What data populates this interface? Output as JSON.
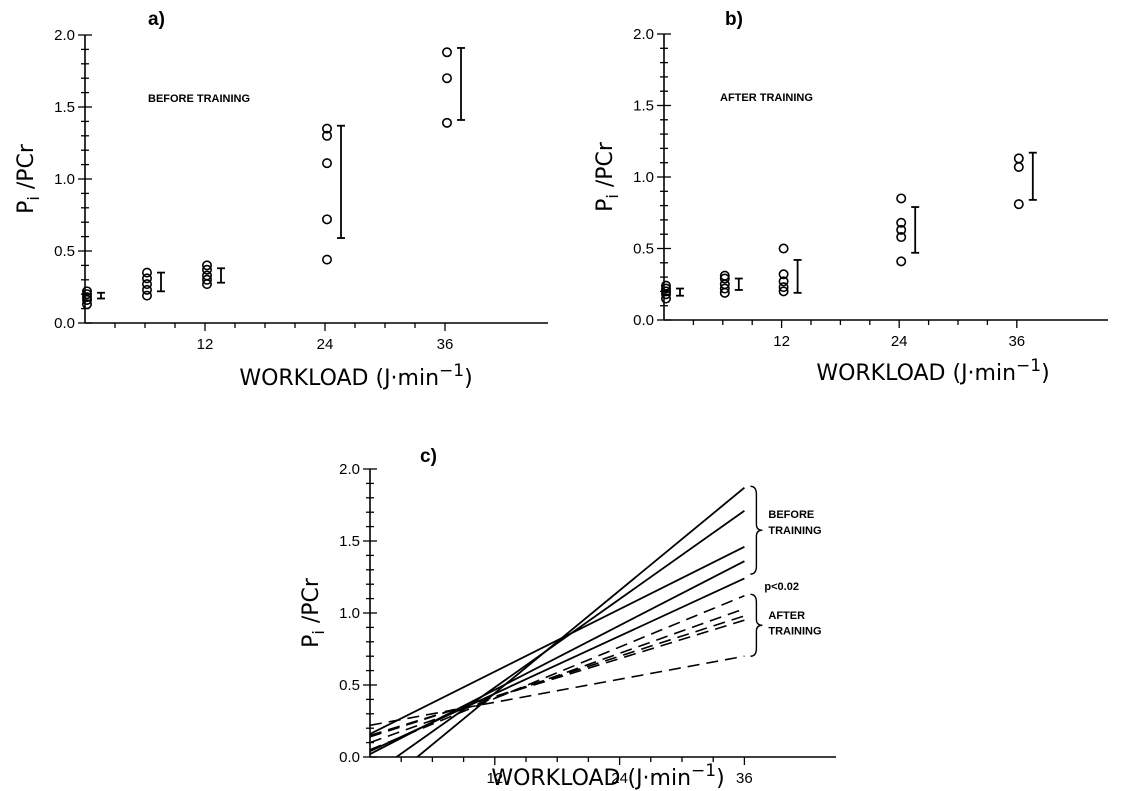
{
  "chart_data": [
    {
      "type": "scatter",
      "panel_label": "a)",
      "annotation": "BEFORE TRAINING",
      "xlabel": "WORKLOAD",
      "xlabel_units": "(J·min",
      "xlabel_exp": "−1",
      "ylabel_main": "P",
      "ylabel_sub": "i",
      "ylabel_rest": "/PCr",
      "xticks": [
        "12",
        "24",
        "36"
      ],
      "yticks": [
        "0.0",
        "0.5",
        "1.0",
        "1.5",
        "2.0"
      ],
      "xlim": [
        0,
        45
      ],
      "ylim": [
        0,
        2.0
      ],
      "points": [
        {
          "x": 0,
          "y": [
            0.13,
            0.16,
            0.18,
            0.2,
            0.22
          ]
        },
        {
          "x": 6,
          "y": [
            0.19,
            0.23,
            0.27,
            0.31,
            0.35
          ]
        },
        {
          "x": 12,
          "y": [
            0.27,
            0.3,
            0.33,
            0.37,
            0.4
          ]
        },
        {
          "x": 24,
          "y": [
            0.44,
            0.72,
            1.11,
            1.3,
            1.35
          ]
        },
        {
          "x": 36,
          "y": [
            1.39,
            1.7,
            1.88
          ]
        }
      ],
      "error_bars": [
        {
          "x": 0,
          "low": 0.17,
          "high": 0.21
        },
        {
          "x": 6,
          "low": 0.22,
          "high": 0.35
        },
        {
          "x": 12,
          "low": 0.28,
          "high": 0.38
        },
        {
          "x": 24,
          "low": 0.59,
          "high": 1.37
        },
        {
          "x": 36,
          "low": 1.41,
          "high": 1.91
        }
      ]
    },
    {
      "type": "scatter",
      "panel_label": "b)",
      "annotation": "AFTER TRAINING",
      "xlabel": "WORKLOAD",
      "xlabel_units": "(J·min",
      "xlabel_exp": "−1",
      "ylabel_main": "P",
      "ylabel_sub": "i",
      "ylabel_rest": "/PCr",
      "xticks": [
        "12",
        "24",
        "36"
      ],
      "yticks": [
        "0.0",
        "0.5",
        "1.0",
        "1.5",
        "2.0"
      ],
      "xlim": [
        0,
        45
      ],
      "ylim": [
        0,
        2.0
      ],
      "points": [
        {
          "x": 0,
          "y": [
            0.15,
            0.18,
            0.2,
            0.22,
            0.24
          ]
        },
        {
          "x": 6,
          "y": [
            0.19,
            0.22,
            0.25,
            0.29,
            0.31
          ]
        },
        {
          "x": 12,
          "y": [
            0.2,
            0.23,
            0.27,
            0.32,
            0.5
          ]
        },
        {
          "x": 24,
          "y": [
            0.41,
            0.58,
            0.63,
            0.68,
            0.85
          ]
        },
        {
          "x": 36,
          "y": [
            0.81,
            1.07,
            1.13
          ]
        }
      ],
      "error_bars": [
        {
          "x": 0,
          "low": 0.17,
          "high": 0.22
        },
        {
          "x": 6,
          "low": 0.21,
          "high": 0.29
        },
        {
          "x": 12,
          "low": 0.19,
          "high": 0.42
        },
        {
          "x": 24,
          "low": 0.47,
          "high": 0.79
        },
        {
          "x": 36,
          "low": 0.84,
          "high": 1.17
        }
      ]
    },
    {
      "type": "line",
      "panel_label": "c)",
      "xlabel": "WORKLOAD",
      "xlabel_units": "(J·min",
      "xlabel_exp": "−1",
      "ylabel_main": "P",
      "ylabel_sub": "i",
      "ylabel_rest": "/PCr",
      "xticks": [
        "12",
        "24",
        "36"
      ],
      "yticks": [
        "0.0",
        "0.5",
        "1.0",
        "1.5",
        "2.0"
      ],
      "xlim": [
        0,
        45
      ],
      "ylim": [
        0,
        2.0
      ],
      "annotation_before": [
        "BEFORE",
        "TRAINING"
      ],
      "annotation_p": "p<0.02",
      "annotation_after": [
        "AFTER",
        "TRAINING"
      ],
      "before_lines": [
        {
          "x": [
            0,
            36
          ],
          "y": [
            -0.27,
            1.87
          ]
        },
        {
          "x": [
            0,
            36
          ],
          "y": [
            -0.13,
            1.71
          ]
        },
        {
          "x": [
            0,
            36
          ],
          "y": [
            0.16,
            1.46
          ]
        },
        {
          "x": [
            0,
            36
          ],
          "y": [
            0.02,
            1.36
          ]
        },
        {
          "x": [
            0,
            36
          ],
          "y": [
            0.04,
            1.24
          ]
        }
      ],
      "after_lines": [
        {
          "x": [
            0,
            36
          ],
          "y": [
            0.05,
            1.12
          ]
        },
        {
          "x": [
            0,
            36
          ],
          "y": [
            0.1,
            1.03
          ]
        },
        {
          "x": [
            0,
            36
          ],
          "y": [
            0.14,
            0.98
          ]
        },
        {
          "x": [
            0,
            36
          ],
          "y": [
            0.15,
            0.95
          ]
        },
        {
          "x": [
            0,
            36
          ],
          "y": [
            0.22,
            0.7
          ]
        }
      ]
    }
  ]
}
